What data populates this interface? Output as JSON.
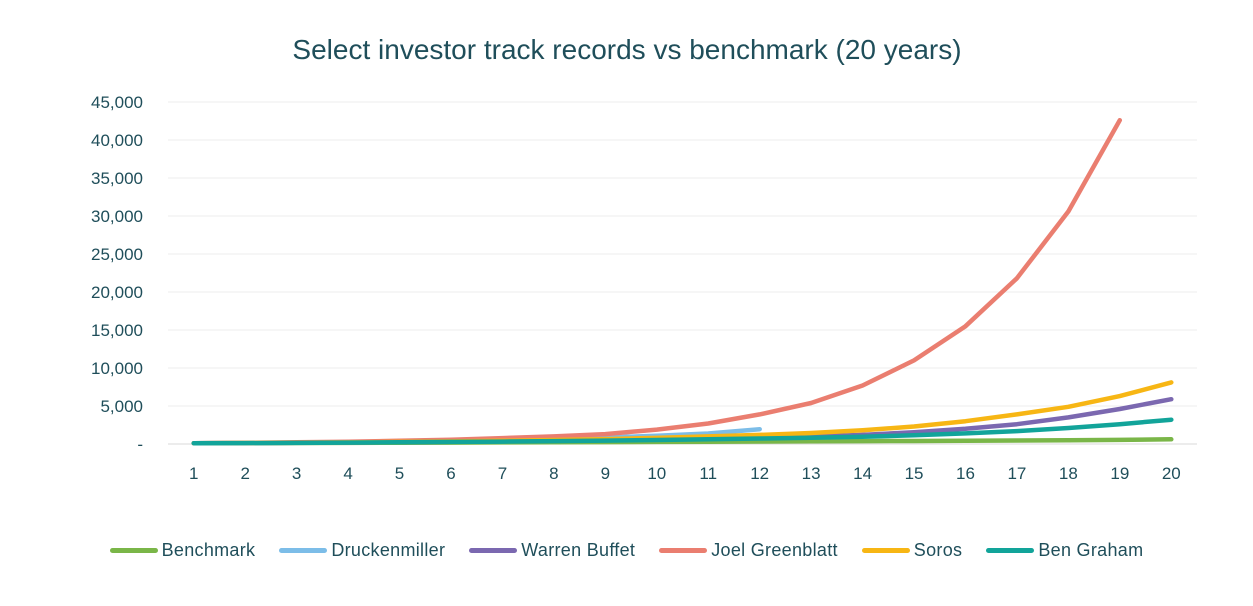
{
  "chart_data": {
    "type": "line",
    "title": "Select investor track records vs benchmark (20 years)",
    "xlabel": "",
    "ylabel": "",
    "categories": [
      "1",
      "2",
      "3",
      "4",
      "5",
      "6",
      "7",
      "8",
      "9",
      "10",
      "11",
      "12",
      "13",
      "14",
      "15",
      "16",
      "17",
      "18",
      "19",
      "20"
    ],
    "y_ticks": [
      "45,000",
      "40,000",
      "35,000",
      "30,000",
      "25,000",
      "20,000",
      "15,000",
      "10,000",
      "5,000",
      "-"
    ],
    "y_tick_values": [
      45000,
      40000,
      35000,
      30000,
      25000,
      20000,
      15000,
      10000,
      5000,
      0
    ],
    "ylim": [
      0,
      45000
    ],
    "grid": true,
    "legend_position": "bottom",
    "series": [
      {
        "name": "Benchmark",
        "color": "#7ab648",
        "values": [
          100,
          115,
          130,
          150,
          170,
          190,
          210,
          230,
          250,
          275,
          300,
          330,
          360,
          380,
          400,
          420,
          460,
          500,
          540,
          620
        ]
      },
      {
        "name": "Druckenmiller",
        "color": "#7cbde8",
        "values": [
          100,
          140,
          190,
          250,
          330,
          420,
          530,
          670,
          850,
          1080,
          1380,
          1950,
          null,
          null,
          null,
          null,
          null,
          null,
          null,
          null
        ]
      },
      {
        "name": "Warren Buffet",
        "color": "#7b68b0",
        "values": [
          100,
          130,
          160,
          200,
          250,
          300,
          360,
          430,
          510,
          600,
          710,
          830,
          980,
          1200,
          1550,
          2000,
          2600,
          3500,
          4600,
          5900
        ]
      },
      {
        "name": "Joel Greenblatt",
        "color": "#ea7e70",
        "values": [
          100,
          150,
          220,
          300,
          420,
          560,
          780,
          1000,
          1300,
          1900,
          2700,
          3900,
          5400,
          7700,
          11000,
          15500,
          21800,
          30600,
          42600,
          null
        ]
      },
      {
        "name": "Soros",
        "color": "#f7b614",
        "values": [
          100,
          130,
          170,
          210,
          270,
          340,
          420,
          520,
          640,
          800,
          1000,
          1200,
          1450,
          1800,
          2300,
          3000,
          3900,
          4900,
          6300,
          8100
        ]
      },
      {
        "name": "Ben Graham",
        "color": "#12a49a",
        "values": [
          100,
          120,
          150,
          180,
          220,
          270,
          320,
          380,
          450,
          530,
          620,
          720,
          830,
          950,
          1150,
          1400,
          1700,
          2100,
          2600,
          3200
        ]
      }
    ]
  }
}
